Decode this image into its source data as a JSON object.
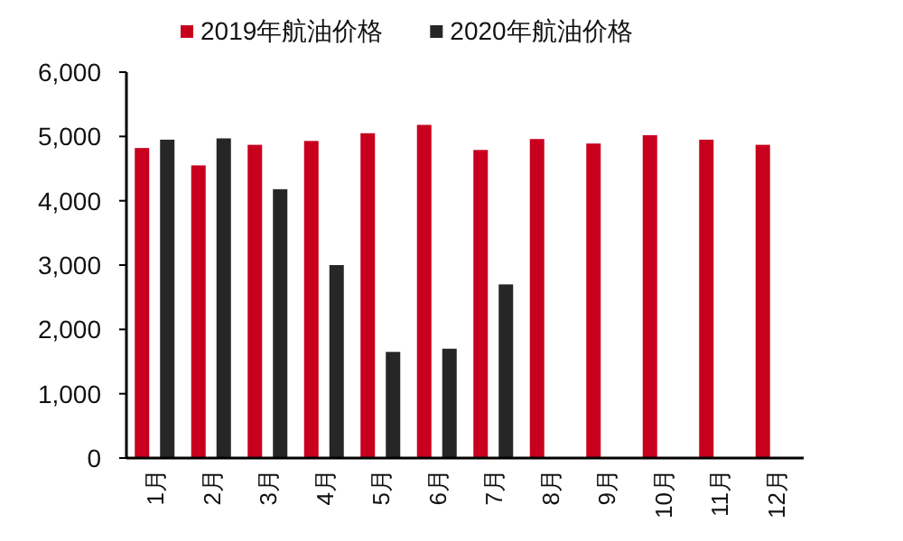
{
  "chart_data": {
    "type": "bar",
    "categories": [
      "1月",
      "2月",
      "3月",
      "4月",
      "5月",
      "6月",
      "7月",
      "8月",
      "9月",
      "10月",
      "11月",
      "12月"
    ],
    "series": [
      {
        "name": "2019年航油价格",
        "color": "#c8001e",
        "values": [
          4820,
          4550,
          4870,
          4930,
          5050,
          5180,
          4790,
          4960,
          4890,
          5020,
          4950,
          4870
        ]
      },
      {
        "name": "2020年航油价格",
        "color": "#262626",
        "values": [
          4950,
          4970,
          4180,
          3000,
          1650,
          1700,
          2700,
          null,
          null,
          null,
          null,
          null
        ]
      }
    ],
    "ylim": [
      0,
      6000
    ],
    "yticks": [
      0,
      {
        "value": 1000,
        "label": "1,000"
      },
      {
        "value": 2000,
        "label": "2,000"
      },
      {
        "value": 3000,
        "label": "3,000"
      },
      {
        "value": 4000,
        "label": "4,000"
      },
      {
        "value": 5000,
        "label": "5,000"
      },
      {
        "value": 6000,
        "label": "6,000"
      }
    ],
    "grid": false,
    "legend": "top"
  }
}
